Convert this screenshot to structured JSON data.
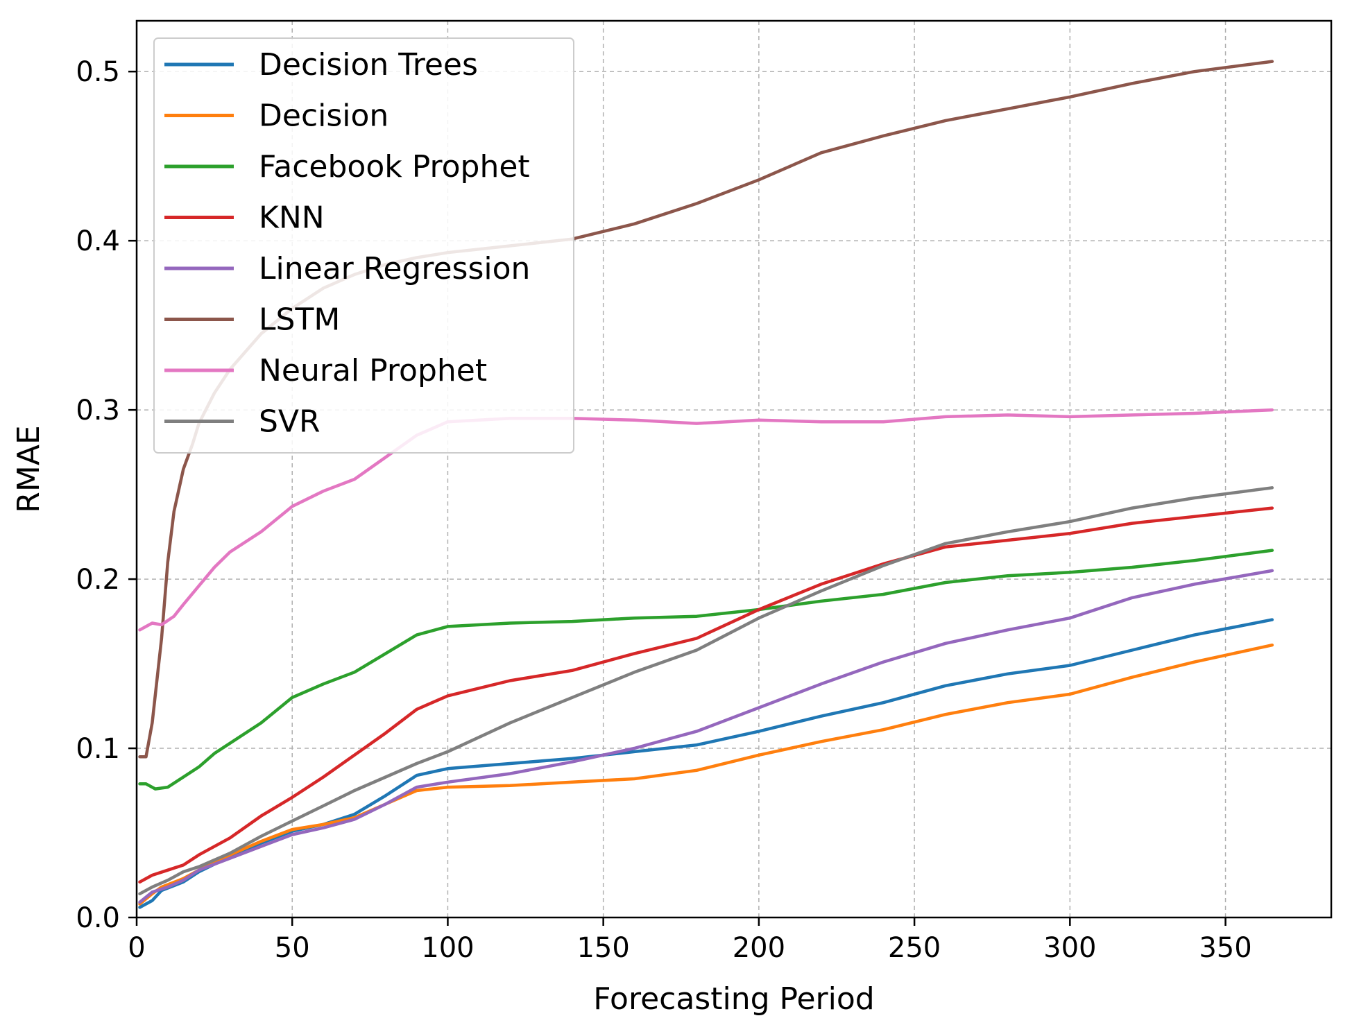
{
  "chart_data": {
    "type": "line",
    "title": "",
    "xlabel": "Forecasting Period",
    "ylabel": "RMAE",
    "xlim": [
      0,
      384
    ],
    "ylim": [
      0,
      0.53
    ],
    "xticks": [
      0,
      50,
      100,
      150,
      200,
      250,
      300,
      350
    ],
    "yticks": [
      0.0,
      0.1,
      0.2,
      0.3,
      0.4,
      0.5
    ],
    "xtick_labels": [
      "0",
      "50",
      "100",
      "150",
      "200",
      "250",
      "300",
      "350"
    ],
    "ytick_labels": [
      "0.0",
      "0.1",
      "0.2",
      "0.3",
      "0.4",
      "0.5"
    ],
    "grid": true,
    "legend_position": "top-left",
    "series": [
      {
        "name": "Decision Trees",
        "color": "#1f77b4",
        "points": [
          [
            1,
            0.006
          ],
          [
            5,
            0.01
          ],
          [
            8,
            0.016
          ],
          [
            15,
            0.021
          ],
          [
            20,
            0.027
          ],
          [
            30,
            0.036
          ],
          [
            40,
            0.044
          ],
          [
            50,
            0.051
          ],
          [
            60,
            0.055
          ],
          [
            70,
            0.061
          ],
          [
            80,
            0.072
          ],
          [
            90,
            0.084
          ],
          [
            100,
            0.088
          ],
          [
            120,
            0.091
          ],
          [
            140,
            0.094
          ],
          [
            160,
            0.098
          ],
          [
            180,
            0.102
          ],
          [
            200,
            0.11
          ],
          [
            220,
            0.119
          ],
          [
            240,
            0.127
          ],
          [
            260,
            0.137
          ],
          [
            280,
            0.144
          ],
          [
            300,
            0.149
          ],
          [
            320,
            0.158
          ],
          [
            340,
            0.167
          ],
          [
            365,
            0.176
          ]
        ]
      },
      {
        "name": "Decision",
        "color": "#ff7f0e",
        "points": [
          [
            1,
            0.008
          ],
          [
            5,
            0.014
          ],
          [
            8,
            0.018
          ],
          [
            15,
            0.023
          ],
          [
            20,
            0.028
          ],
          [
            30,
            0.037
          ],
          [
            40,
            0.045
          ],
          [
            50,
            0.052
          ],
          [
            60,
            0.055
          ],
          [
            70,
            0.059
          ],
          [
            80,
            0.067
          ],
          [
            90,
            0.075
          ],
          [
            100,
            0.077
          ],
          [
            120,
            0.078
          ],
          [
            140,
            0.08
          ],
          [
            160,
            0.082
          ],
          [
            180,
            0.087
          ],
          [
            200,
            0.096
          ],
          [
            220,
            0.104
          ],
          [
            240,
            0.111
          ],
          [
            260,
            0.12
          ],
          [
            280,
            0.127
          ],
          [
            300,
            0.132
          ],
          [
            320,
            0.142
          ],
          [
            340,
            0.151
          ],
          [
            365,
            0.161
          ]
        ]
      },
      {
        "name": "Facebook Prophet",
        "color": "#2ca02c",
        "points": [
          [
            1,
            0.079
          ],
          [
            3,
            0.079
          ],
          [
            6,
            0.076
          ],
          [
            10,
            0.077
          ],
          [
            15,
            0.083
          ],
          [
            20,
            0.089
          ],
          [
            25,
            0.097
          ],
          [
            30,
            0.103
          ],
          [
            40,
            0.115
          ],
          [
            50,
            0.13
          ],
          [
            60,
            0.138
          ],
          [
            70,
            0.145
          ],
          [
            80,
            0.156
          ],
          [
            90,
            0.167
          ],
          [
            100,
            0.172
          ],
          [
            120,
            0.174
          ],
          [
            140,
            0.175
          ],
          [
            160,
            0.177
          ],
          [
            180,
            0.178
          ],
          [
            200,
            0.182
          ],
          [
            220,
            0.187
          ],
          [
            240,
            0.191
          ],
          [
            260,
            0.198
          ],
          [
            280,
            0.202
          ],
          [
            300,
            0.204
          ],
          [
            320,
            0.207
          ],
          [
            340,
            0.211
          ],
          [
            365,
            0.217
          ]
        ]
      },
      {
        "name": "KNN",
        "color": "#d62728",
        "points": [
          [
            1,
            0.021
          ],
          [
            5,
            0.025
          ],
          [
            10,
            0.028
          ],
          [
            15,
            0.031
          ],
          [
            20,
            0.037
          ],
          [
            30,
            0.047
          ],
          [
            40,
            0.06
          ],
          [
            50,
            0.071
          ],
          [
            60,
            0.083
          ],
          [
            70,
            0.096
          ],
          [
            80,
            0.109
          ],
          [
            90,
            0.123
          ],
          [
            100,
            0.131
          ],
          [
            120,
            0.14
          ],
          [
            140,
            0.146
          ],
          [
            160,
            0.156
          ],
          [
            180,
            0.165
          ],
          [
            200,
            0.182
          ],
          [
            220,
            0.197
          ],
          [
            240,
            0.209
          ],
          [
            260,
            0.219
          ],
          [
            280,
            0.223
          ],
          [
            300,
            0.227
          ],
          [
            320,
            0.233
          ],
          [
            340,
            0.237
          ],
          [
            365,
            0.242
          ]
        ]
      },
      {
        "name": "Linear Regression",
        "color": "#9467bd",
        "points": [
          [
            1,
            0.009
          ],
          [
            5,
            0.015
          ],
          [
            10,
            0.018
          ],
          [
            15,
            0.022
          ],
          [
            20,
            0.028
          ],
          [
            30,
            0.035
          ],
          [
            40,
            0.042
          ],
          [
            50,
            0.049
          ],
          [
            60,
            0.053
          ],
          [
            70,
            0.058
          ],
          [
            80,
            0.067
          ],
          [
            90,
            0.077
          ],
          [
            100,
            0.08
          ],
          [
            120,
            0.085
          ],
          [
            140,
            0.092
          ],
          [
            160,
            0.1
          ],
          [
            180,
            0.11
          ],
          [
            200,
            0.124
          ],
          [
            220,
            0.138
          ],
          [
            240,
            0.151
          ],
          [
            260,
            0.162
          ],
          [
            280,
            0.17
          ],
          [
            300,
            0.177
          ],
          [
            320,
            0.189
          ],
          [
            340,
            0.197
          ],
          [
            365,
            0.205
          ]
        ]
      },
      {
        "name": "LSTM",
        "color": "#8c564b",
        "points": [
          [
            1,
            0.095
          ],
          [
            3,
            0.095
          ],
          [
            5,
            0.115
          ],
          [
            8,
            0.165
          ],
          [
            10,
            0.21
          ],
          [
            12,
            0.24
          ],
          [
            15,
            0.265
          ],
          [
            18,
            0.28
          ],
          [
            20,
            0.292
          ],
          [
            25,
            0.31
          ],
          [
            30,
            0.324
          ],
          [
            40,
            0.345
          ],
          [
            50,
            0.36
          ],
          [
            60,
            0.372
          ],
          [
            70,
            0.38
          ],
          [
            80,
            0.386
          ],
          [
            90,
            0.39
          ],
          [
            100,
            0.393
          ],
          [
            120,
            0.397
          ],
          [
            140,
            0.401
          ],
          [
            160,
            0.41
          ],
          [
            180,
            0.422
          ],
          [
            200,
            0.436
          ],
          [
            220,
            0.452
          ],
          [
            240,
            0.462
          ],
          [
            260,
            0.471
          ],
          [
            280,
            0.478
          ],
          [
            300,
            0.485
          ],
          [
            320,
            0.493
          ],
          [
            340,
            0.5
          ],
          [
            365,
            0.506
          ]
        ]
      },
      {
        "name": "Neural Prophet",
        "color": "#e377c2",
        "points": [
          [
            1,
            0.17
          ],
          [
            3,
            0.172
          ],
          [
            5,
            0.174
          ],
          [
            8,
            0.173
          ],
          [
            12,
            0.178
          ],
          [
            15,
            0.185
          ],
          [
            20,
            0.196
          ],
          [
            25,
            0.207
          ],
          [
            30,
            0.216
          ],
          [
            40,
            0.228
          ],
          [
            50,
            0.243
          ],
          [
            60,
            0.252
          ],
          [
            70,
            0.259
          ],
          [
            80,
            0.272
          ],
          [
            90,
            0.285
          ],
          [
            100,
            0.293
          ],
          [
            120,
            0.295
          ],
          [
            140,
            0.295
          ],
          [
            160,
            0.294
          ],
          [
            180,
            0.292
          ],
          [
            200,
            0.294
          ],
          [
            220,
            0.293
          ],
          [
            240,
            0.293
          ],
          [
            260,
            0.296
          ],
          [
            280,
            0.297
          ],
          [
            300,
            0.296
          ],
          [
            320,
            0.297
          ],
          [
            340,
            0.298
          ],
          [
            365,
            0.3
          ]
        ]
      },
      {
        "name": "SVR",
        "color": "#7f7f7f",
        "points": [
          [
            1,
            0.014
          ],
          [
            5,
            0.018
          ],
          [
            10,
            0.022
          ],
          [
            15,
            0.027
          ],
          [
            20,
            0.03
          ],
          [
            30,
            0.038
          ],
          [
            40,
            0.048
          ],
          [
            50,
            0.057
          ],
          [
            60,
            0.066
          ],
          [
            70,
            0.075
          ],
          [
            80,
            0.083
          ],
          [
            90,
            0.091
          ],
          [
            100,
            0.098
          ],
          [
            120,
            0.115
          ],
          [
            140,
            0.13
          ],
          [
            160,
            0.145
          ],
          [
            180,
            0.158
          ],
          [
            200,
            0.177
          ],
          [
            220,
            0.193
          ],
          [
            240,
            0.208
          ],
          [
            260,
            0.221
          ],
          [
            280,
            0.228
          ],
          [
            300,
            0.234
          ],
          [
            320,
            0.242
          ],
          [
            340,
            0.248
          ],
          [
            365,
            0.254
          ]
        ]
      }
    ]
  }
}
